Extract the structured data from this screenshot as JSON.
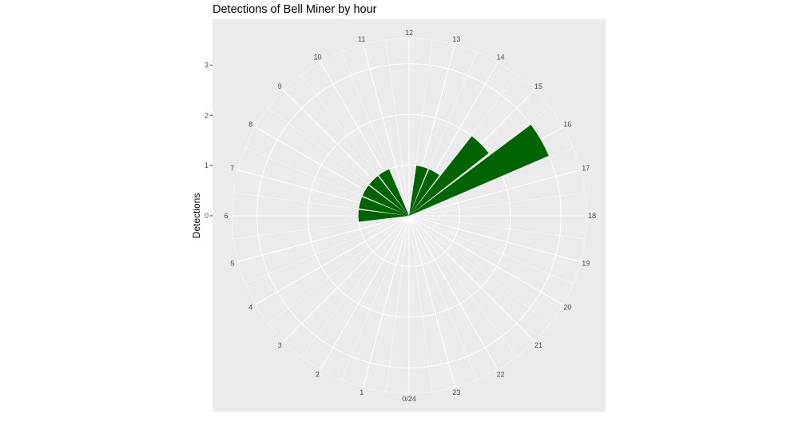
{
  "chart_data": {
    "type": "bar",
    "coordinate_system": "polar",
    "title": "Detections of Bell Miner by hour",
    "ylabel": "Detections",
    "xlabel": "",
    "categories": [
      "0/24",
      "1",
      "2",
      "3",
      "4",
      "5",
      "6",
      "7",
      "8",
      "9",
      "10",
      "11",
      "12",
      "13",
      "14",
      "15",
      "16",
      "17",
      "18",
      "19",
      "20",
      "21",
      "22",
      "23"
    ],
    "values": [
      0,
      0,
      0,
      0,
      0,
      0,
      1,
      1,
      1,
      1,
      1,
      0,
      0,
      1,
      1,
      2,
      3,
      0,
      0,
      0,
      0,
      0,
      0,
      0
    ],
    "ylim": [
      0,
      3.5
    ],
    "yticks": [
      0,
      1,
      2,
      3
    ],
    "ytick_labels": [
      "0",
      "1",
      "2",
      "3"
    ],
    "bar_color": "#006400",
    "panel_color": "#ebebeb",
    "grid_color": "#ffffff",
    "grid": true
  }
}
